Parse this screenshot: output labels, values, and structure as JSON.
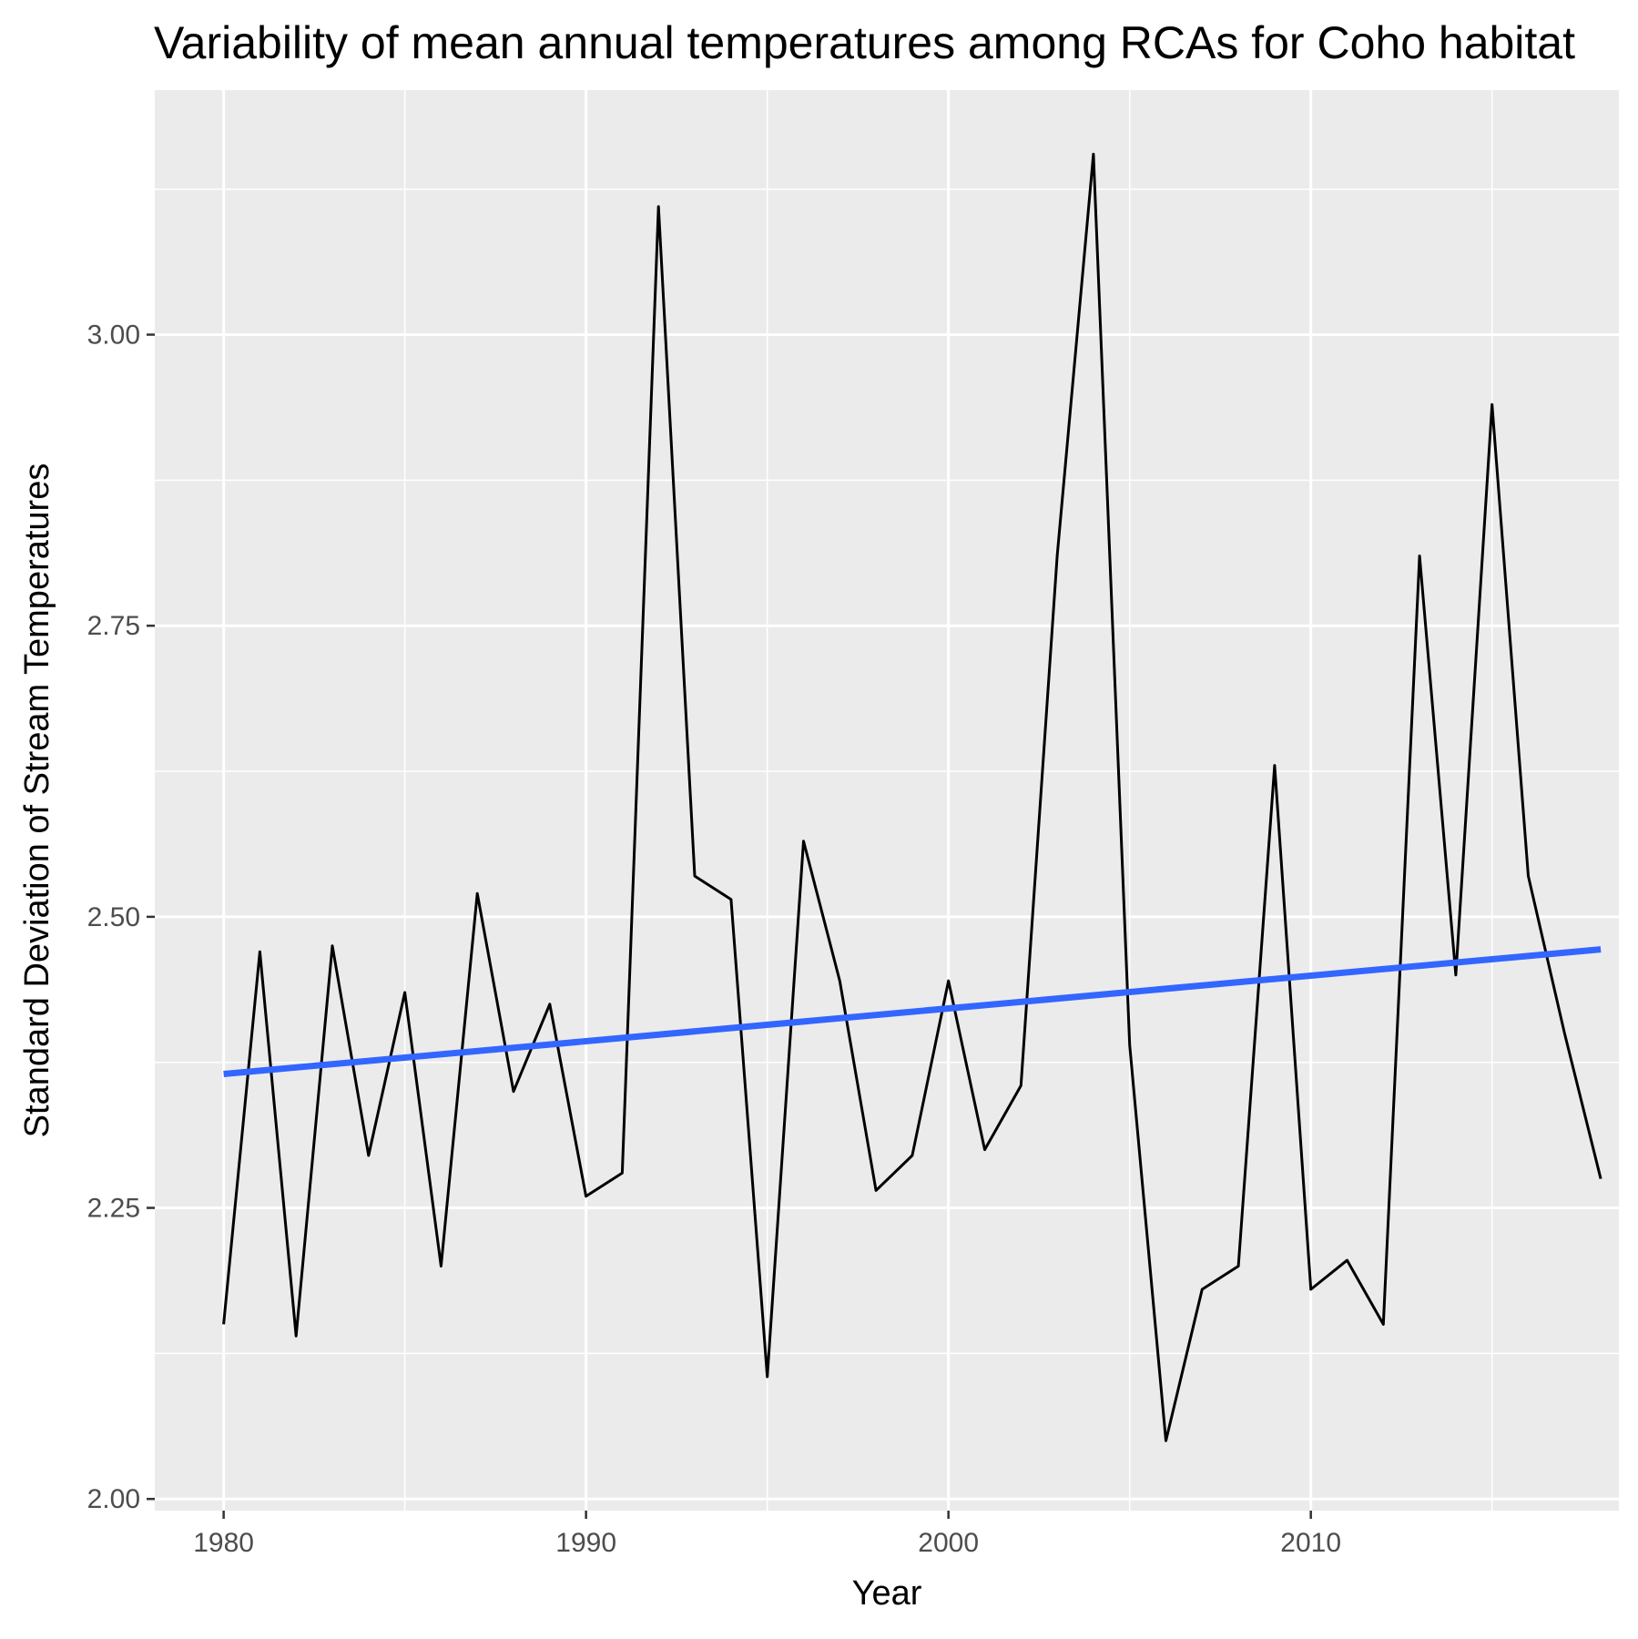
{
  "chart_data": {
    "type": "line",
    "title": "Variability of mean annual temperatures among RCAs for Coho habitat",
    "xlabel": "Year",
    "ylabel": "Standard Deviation of Stream Temperatures",
    "xlim": [
      1978.1,
      2018.5
    ],
    "ylim": [
      1.99,
      3.21
    ],
    "x_ticks": [
      1980,
      1990,
      2000,
      2010
    ],
    "y_ticks": [
      2.0,
      2.25,
      2.5,
      2.75,
      3.0
    ],
    "x_tick_labels": [
      "1980",
      "1990",
      "2000",
      "2010"
    ],
    "y_tick_labels": [
      "2.00",
      "2.25",
      "2.50",
      "2.75",
      "3.00"
    ],
    "grid": true,
    "legend": "none",
    "series": [
      {
        "color": "#000000",
        "x": [
          1980,
          1981,
          1982,
          1983,
          1984,
          1985,
          1986,
          1987,
          1988,
          1989,
          1990,
          1991,
          1992,
          1993,
          1994,
          1995,
          1996,
          1997,
          1998,
          1999,
          2000,
          2001,
          2002,
          2003,
          2004,
          2005,
          2006,
          2007,
          2008,
          2009,
          2010,
          2011,
          2012,
          2013,
          2014,
          2015,
          2016,
          2017,
          2018
        ],
        "values": [
          2.15,
          2.47,
          2.14,
          2.475,
          2.295,
          2.435,
          2.2,
          2.52,
          2.35,
          2.425,
          2.26,
          2.28,
          3.11,
          2.535,
          2.515,
          2.105,
          2.565,
          2.445,
          2.265,
          2.295,
          2.445,
          2.3,
          2.355,
          2.81,
          3.155,
          2.39,
          2.05,
          2.18,
          2.2,
          2.63,
          2.18,
          2.205,
          2.15,
          2.81,
          2.45,
          2.94,
          2.535,
          2.4,
          2.275
        ]
      }
    ],
    "trend": {
      "color": "#3366ff",
      "x": [
        1980,
        2018
      ],
      "values": [
        2.365,
        2.472
      ]
    }
  }
}
